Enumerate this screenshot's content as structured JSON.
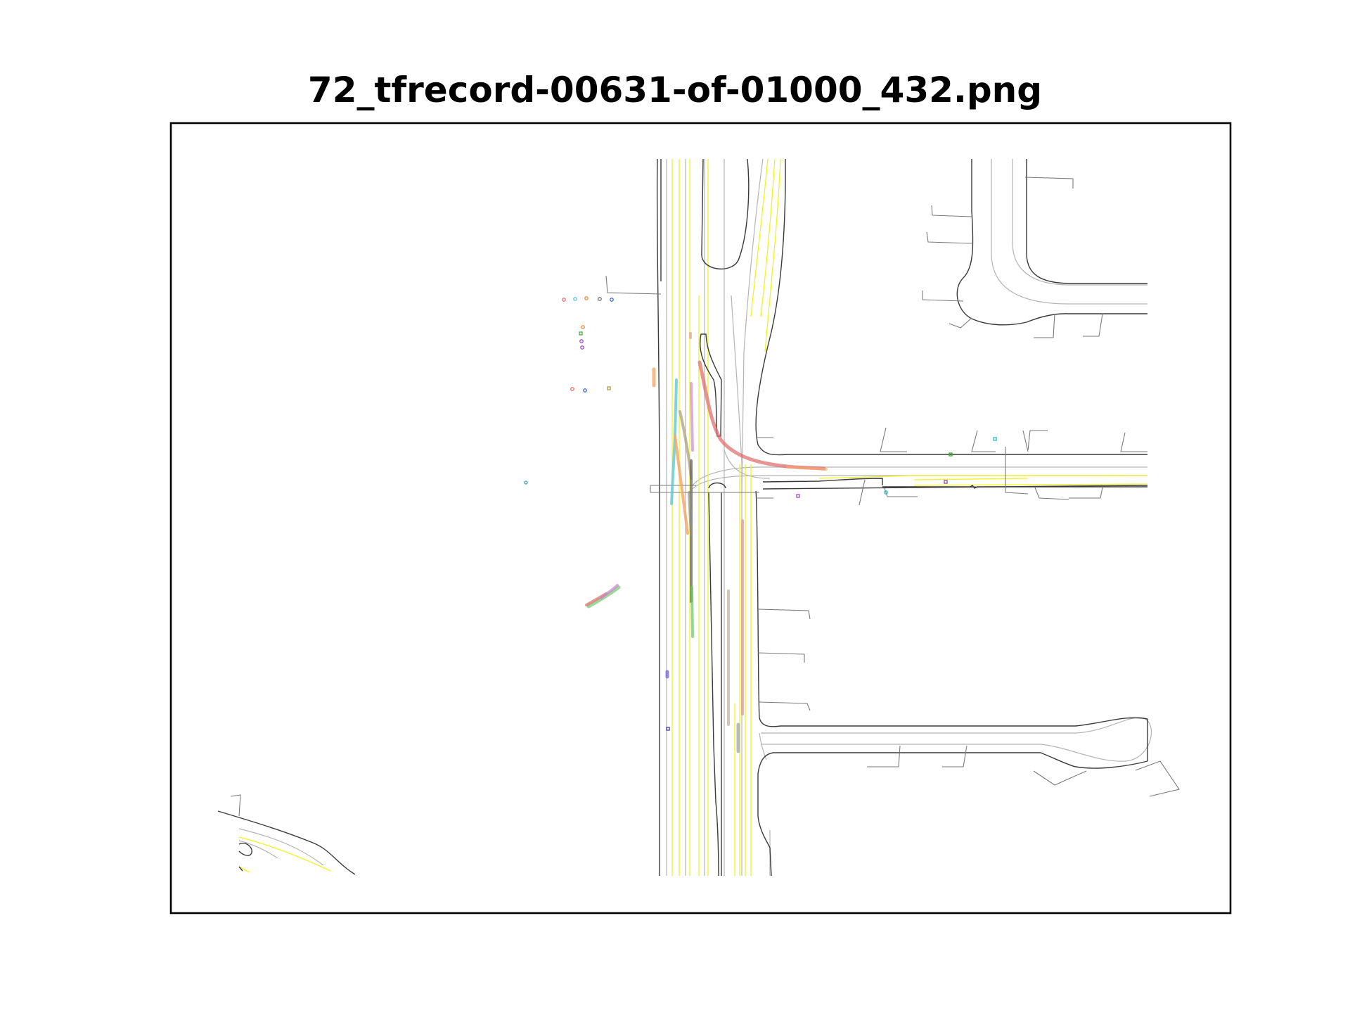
{
  "figure": {
    "title": "72_tfrecord-00631-of-01000_432.png"
  },
  "colors": {
    "road_edge": "#3a3a3a",
    "lane_center": "#b4b4b4",
    "lane_marking": "#f2f222",
    "agent_colors": [
      "#e07070",
      "#f6a86a",
      "#5fc8d8",
      "#c98ac9",
      "#8e8e8e",
      "#6cc96c",
      "#9a8ad8"
    ]
  },
  "icons": {
    "plot_frame": "axes-frame"
  }
}
